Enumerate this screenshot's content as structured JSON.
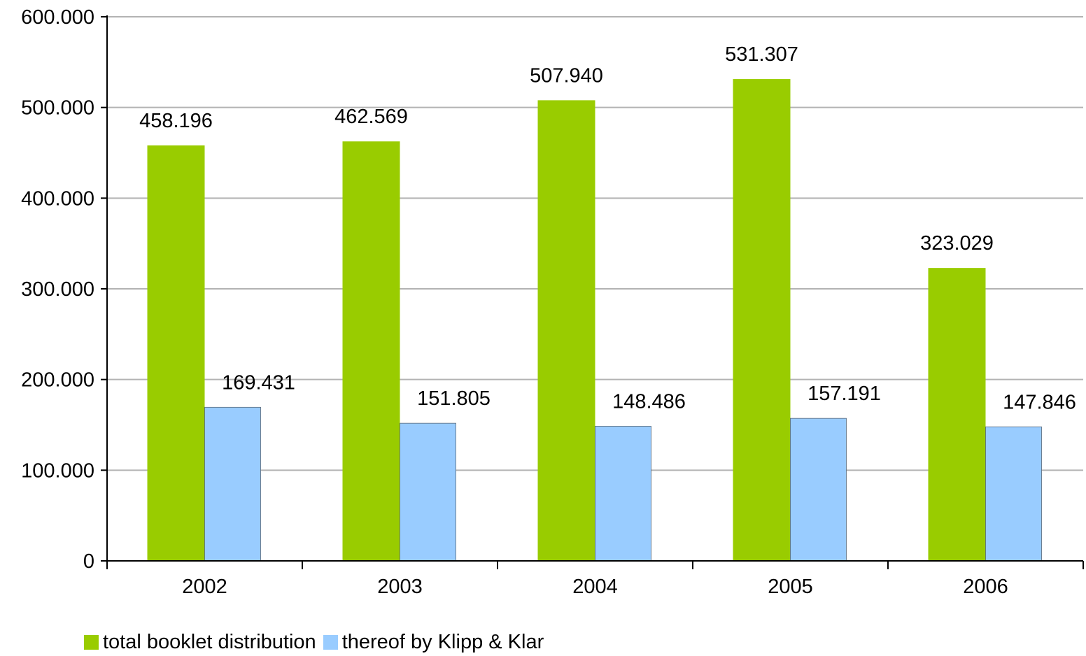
{
  "chart_data": {
    "type": "bar",
    "categories": [
      "2002",
      "2003",
      "2004",
      "2005",
      "2006"
    ],
    "series": [
      {
        "name": "total booklet distribution",
        "values": [
          458196,
          462569,
          507940,
          531307,
          323029
        ],
        "labels": [
          "458.196",
          "462.569",
          "507.940",
          "531.307",
          "323.029"
        ],
        "color": "#99cc00"
      },
      {
        "name": "thereof by Klipp & Klar",
        "values": [
          169431,
          151805,
          148486,
          157191,
          147846
        ],
        "labels": [
          "169.431",
          "151.805",
          "148.486",
          "157.191",
          "147.846"
        ],
        "color": "#99ccff"
      }
    ],
    "ylim": [
      0,
      600000
    ],
    "yticks": [
      0,
      100000,
      200000,
      300000,
      400000,
      500000,
      600000
    ],
    "ytick_labels": [
      "0",
      "100.000",
      "200.000",
      "300.000",
      "400.000",
      "500.000",
      "600.000"
    ],
    "grid": true,
    "legend": "bottom-left",
    "title": "",
    "xlabel": "",
    "ylabel": ""
  }
}
